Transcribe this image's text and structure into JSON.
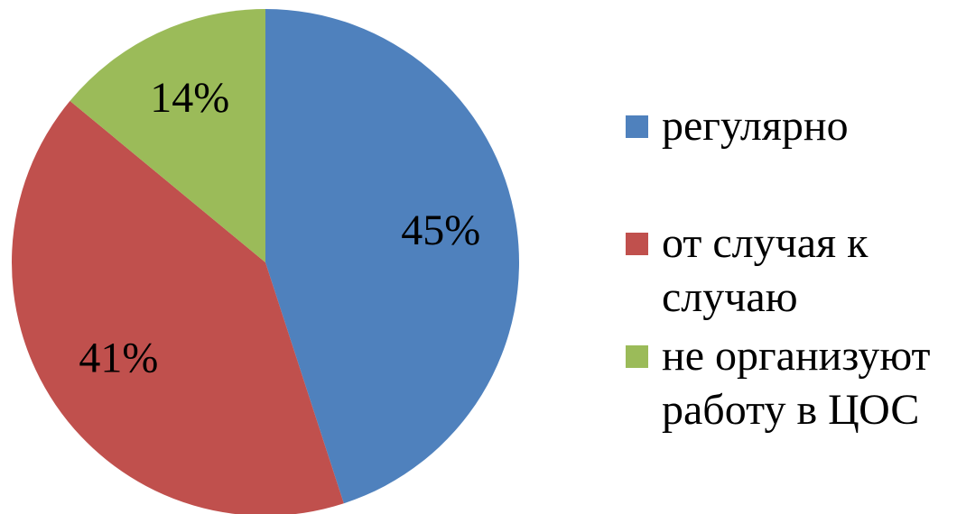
{
  "chart_data": {
    "type": "pie",
    "categories": [
      "регулярно",
      "от случая к случаю",
      "не организуют работу в ЦОС"
    ],
    "values": [
      45,
      41,
      14
    ],
    "value_labels": [
      "45%",
      "41%",
      "14%"
    ],
    "colors": [
      "#4f81bd",
      "#c0504d",
      "#9bbb59"
    ],
    "legend": "right"
  }
}
